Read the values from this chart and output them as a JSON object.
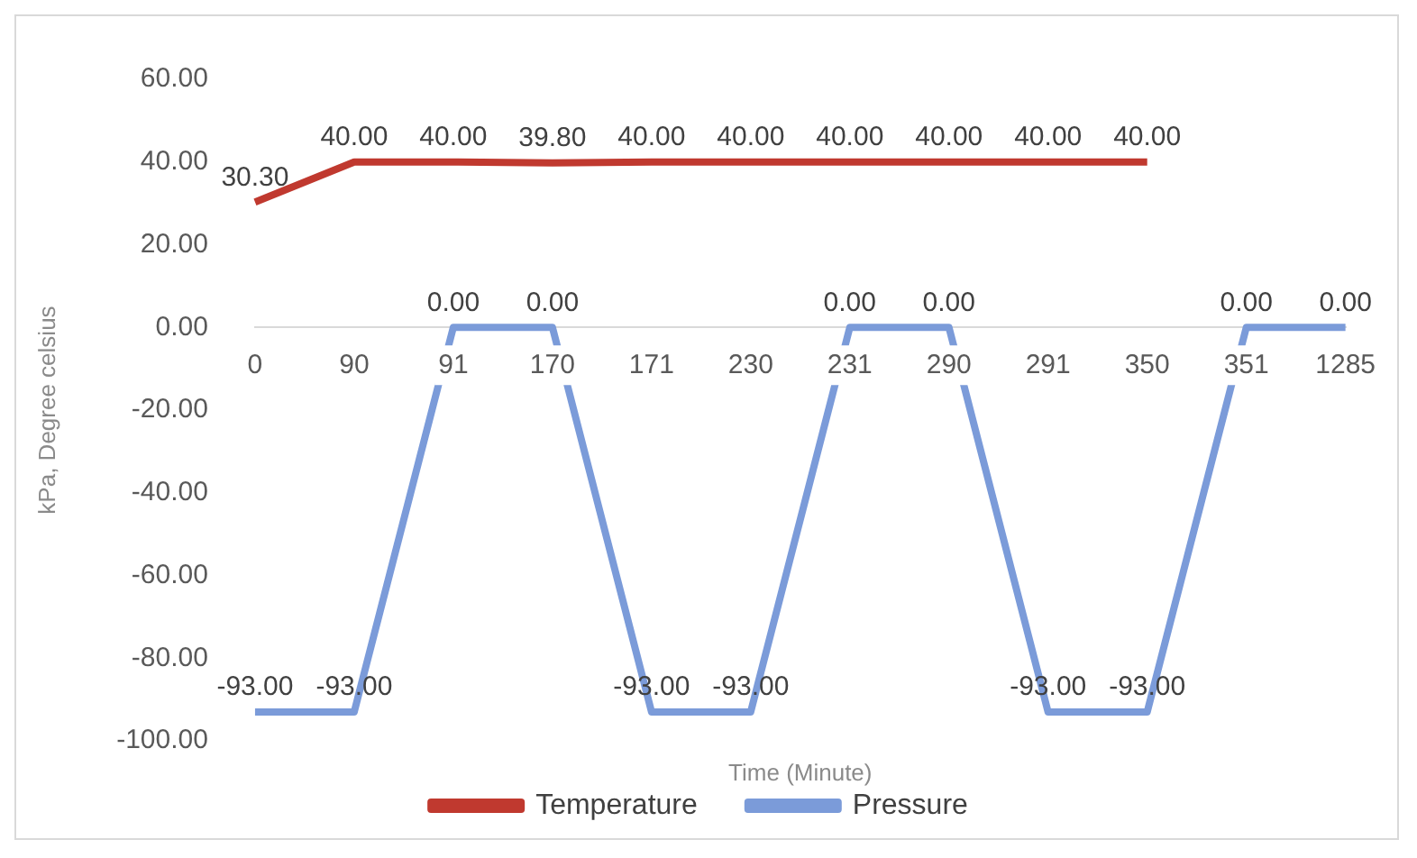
{
  "chart_data": {
    "type": "line",
    "xlabel": "Time (Minute)",
    "ylabel": "kPa, Degree celsius",
    "categories": [
      "0",
      "90",
      "91",
      "170",
      "171",
      "230",
      "231",
      "290",
      "291",
      "350",
      "351",
      "1285"
    ],
    "series": [
      {
        "name": "Temperature",
        "color": "#c0392f",
        "values": [
          30.3,
          40,
          40,
          39.8,
          40,
          40,
          40,
          40,
          40,
          40,
          null,
          null
        ],
        "value_labels": [
          "30.30",
          "40.00",
          "40.00",
          "39.80",
          "40.00",
          "40.00",
          "40.00",
          "40.00",
          "40.00",
          "40.00",
          null,
          null
        ]
      },
      {
        "name": "Pressure",
        "color": "#7b9bd9",
        "values": [
          -93,
          -93,
          0,
          0,
          -93,
          -93,
          0,
          0,
          -93,
          -93,
          0,
          0
        ],
        "value_labels": [
          "-93.00",
          "-93.00",
          "0.00",
          "0.00",
          "-93.00",
          "-93.00",
          "0.00",
          "0.00",
          "-93.00",
          "-93.00",
          "0.00",
          "0.00"
        ]
      }
    ],
    "ylim": [
      -100,
      60
    ],
    "yticks": [
      {
        "value": -100,
        "label": "-100.00"
      },
      {
        "value": -80,
        "label": "-80.00"
      },
      {
        "value": -60,
        "label": "-60.00"
      },
      {
        "value": -40,
        "label": "-40.00"
      },
      {
        "value": -20,
        "label": "-20.00"
      },
      {
        "value": 0,
        "label": "0.00"
      },
      {
        "value": 20,
        "label": "20.00"
      },
      {
        "value": 40,
        "label": "40.00"
      },
      {
        "value": 60,
        "label": "60.00"
      }
    ],
    "legend": "bottom",
    "marker": "none",
    "line_style": "solid",
    "grid": false
  }
}
